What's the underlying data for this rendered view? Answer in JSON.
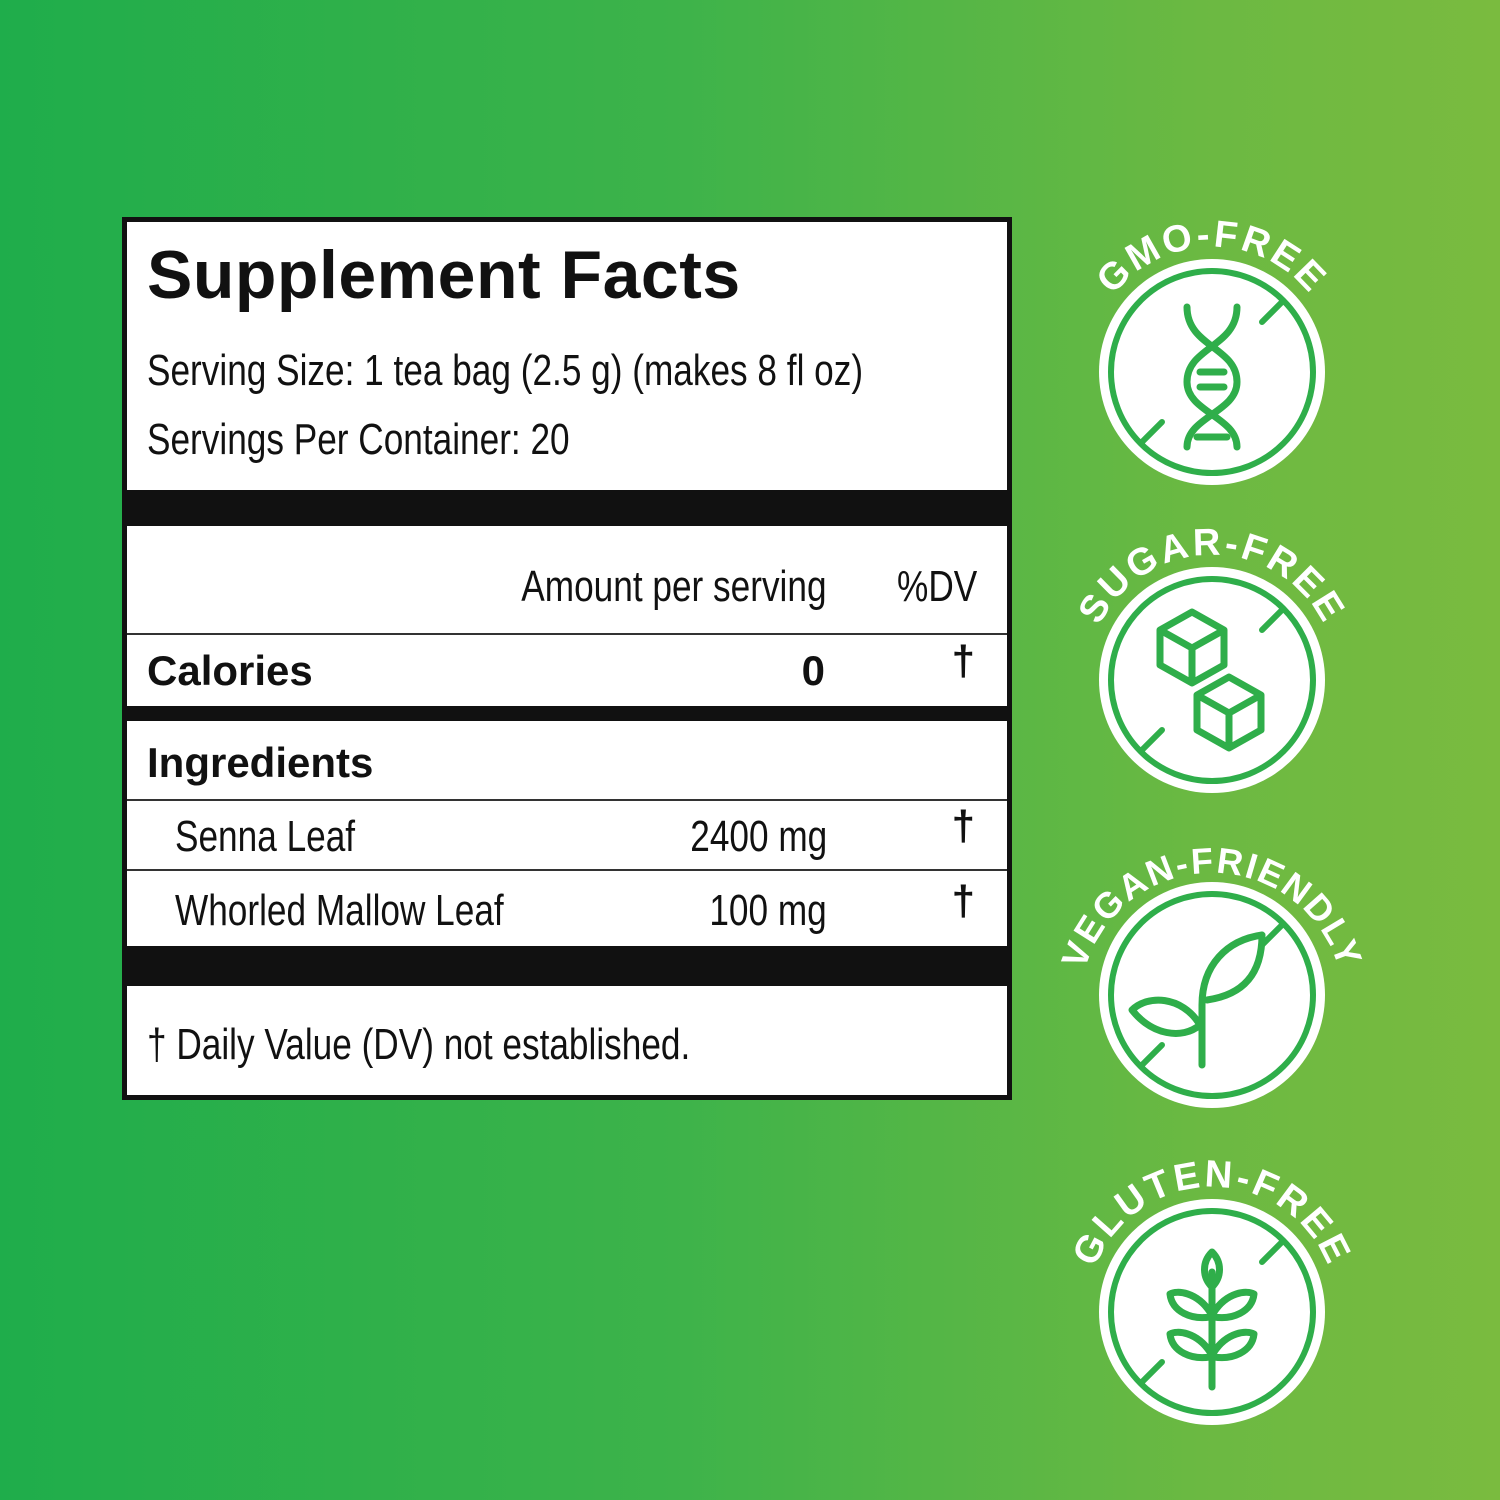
{
  "label": {
    "title": "Supplement Facts",
    "serving_size": "Serving Size: 1 tea bag (2.5 g) (makes 8 fl oz)",
    "servings_per_container": "Servings Per Container: 20",
    "header": {
      "amount": "Amount per serving",
      "dv": "%DV"
    },
    "calories": {
      "name": "Calories",
      "amount": "0",
      "dv": "†"
    },
    "ingredients_heading": "Ingredients",
    "ingredients": [
      {
        "name": "Senna Leaf",
        "amount": "2400 mg",
        "dv": "†"
      },
      {
        "name": "Whorled Mallow Leaf",
        "amount": "100 mg",
        "dv": "†"
      }
    ],
    "footnote": "† Daily Value (DV) not established."
  },
  "badges": [
    {
      "text": "GMO-FREE",
      "icon": "dna-icon"
    },
    {
      "text": "SUGAR-FREE",
      "icon": "sugar-cubes-icon"
    },
    {
      "text": "VEGAN-FRIENDLY",
      "icon": "sprout-icon"
    },
    {
      "text": "GLUTEN-FREE",
      "icon": "wheat-icon"
    }
  ],
  "colors": {
    "background_left": "#1fad4b",
    "background_right": "#7abb3f",
    "badge_green": "#2fae4a"
  }
}
